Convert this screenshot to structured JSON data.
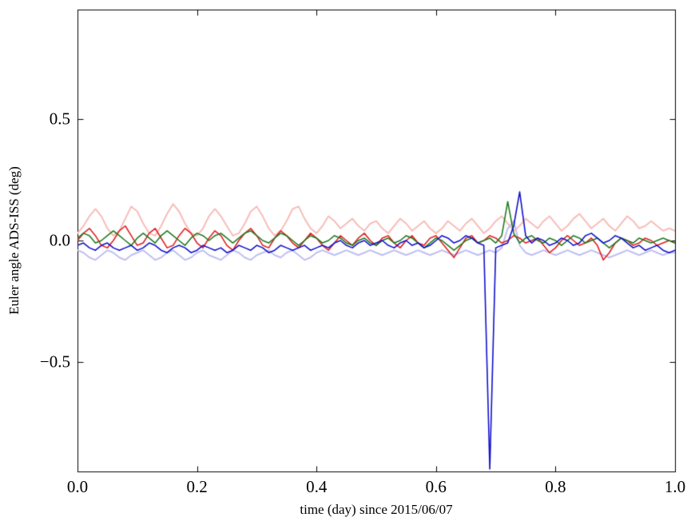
{
  "figure": {
    "background": "#ffffff"
  },
  "chart_data": {
    "type": "line",
    "title": "",
    "xlabel": "time (day) since 2015/06/07",
    "ylabel": "Euler angle ADS-ISS (deg)",
    "xlim": [
      0.0,
      1.0
    ],
    "ylim": [
      -0.95,
      0.95
    ],
    "xticks": [
      0.0,
      0.2,
      0.4,
      0.6,
      0.8,
      1.0
    ],
    "xtick_labels": [
      "0.0",
      "0.2",
      "0.4",
      "0.6",
      "0.8",
      "1.0"
    ],
    "yticks": [
      -0.5,
      0.0,
      0.5
    ],
    "ytick_labels": [
      "−0.5",
      "0.0",
      "0.5"
    ],
    "grid": false,
    "legend": null,
    "x": {
      "start": 0.0,
      "step": 0.01,
      "count": 101
    },
    "series": [
      {
        "name": "euler-angle-light-red",
        "color": "#f6bdb9",
        "width": 2.0,
        "values": [
          0.03,
          0.06,
          0.1,
          0.13,
          0.1,
          0.05,
          0.02,
          0.04,
          0.09,
          0.14,
          0.12,
          0.07,
          0.03,
          0.02,
          0.06,
          0.11,
          0.15,
          0.12,
          0.07,
          0.03,
          0.02,
          0.05,
          0.1,
          0.13,
          0.1,
          0.06,
          0.02,
          0.03,
          0.07,
          0.12,
          0.14,
          0.1,
          0.05,
          0.02,
          0.04,
          0.08,
          0.13,
          0.14,
          0.09,
          0.05,
          0.03,
          0.06,
          0.1,
          0.08,
          0.05,
          0.07,
          0.09,
          0.06,
          0.04,
          0.07,
          0.08,
          0.05,
          0.03,
          0.06,
          0.09,
          0.07,
          0.04,
          0.06,
          0.08,
          0.05,
          0.03,
          0.05,
          0.08,
          0.06,
          0.04,
          0.07,
          0.09,
          0.06,
          0.03,
          0.05,
          0.08,
          0.1,
          0.07,
          0.04,
          0.06,
          0.09,
          0.07,
          0.05,
          0.08,
          0.1,
          0.07,
          0.04,
          0.06,
          0.09,
          0.11,
          0.08,
          0.05,
          0.07,
          0.09,
          0.06,
          0.04,
          0.07,
          0.1,
          0.08,
          0.05,
          0.06,
          0.08,
          0.06,
          0.04,
          0.05,
          0.04
        ]
      },
      {
        "name": "euler-angle-light-blue",
        "color": "#bfbff2",
        "width": 2.0,
        "values": [
          -0.04,
          -0.05,
          -0.07,
          -0.08,
          -0.06,
          -0.04,
          -0.05,
          -0.07,
          -0.08,
          -0.06,
          -0.05,
          -0.04,
          -0.06,
          -0.08,
          -0.07,
          -0.05,
          -0.04,
          -0.06,
          -0.08,
          -0.07,
          -0.05,
          -0.04,
          -0.06,
          -0.07,
          -0.08,
          -0.06,
          -0.04,
          -0.05,
          -0.07,
          -0.08,
          -0.06,
          -0.05,
          -0.04,
          -0.06,
          -0.07,
          -0.05,
          -0.04,
          -0.06,
          -0.08,
          -0.07,
          -0.05,
          -0.04,
          -0.05,
          -0.06,
          -0.05,
          -0.04,
          -0.05,
          -0.06,
          -0.05,
          -0.04,
          -0.05,
          -0.06,
          -0.05,
          -0.04,
          -0.05,
          -0.06,
          -0.05,
          -0.04,
          -0.05,
          -0.06,
          -0.05,
          -0.04,
          -0.05,
          -0.06,
          -0.05,
          -0.04,
          -0.05,
          -0.06,
          -0.05,
          -0.04,
          -0.05,
          -0.03,
          0.05,
          0.08,
          -0.02,
          -0.05,
          -0.06,
          -0.05,
          -0.04,
          -0.05,
          -0.06,
          -0.05,
          -0.04,
          -0.05,
          -0.06,
          -0.05,
          -0.04,
          -0.05,
          -0.06,
          -0.07,
          -0.06,
          -0.05,
          -0.04,
          -0.05,
          -0.06,
          -0.05,
          -0.04,
          -0.05,
          -0.06,
          -0.05,
          -0.05
        ]
      },
      {
        "name": "euler-angle-red",
        "color": "#dd2222",
        "width": 1.6,
        "values": [
          0.0,
          0.03,
          0.05,
          0.02,
          -0.02,
          -0.03,
          0.0,
          0.04,
          0.06,
          0.02,
          -0.02,
          -0.01,
          0.03,
          0.05,
          0.01,
          -0.03,
          -0.02,
          0.02,
          0.05,
          0.03,
          -0.01,
          -0.03,
          0.01,
          0.04,
          0.02,
          -0.02,
          -0.04,
          0.0,
          0.03,
          0.05,
          0.02,
          -0.02,
          -0.03,
          0.01,
          0.04,
          0.02,
          -0.01,
          -0.03,
          0.0,
          0.03,
          0.01,
          -0.02,
          -0.04,
          -0.01,
          0.02,
          0.0,
          -0.02,
          0.01,
          0.03,
          0.0,
          -0.02,
          0.01,
          0.02,
          -0.01,
          -0.03,
          0.0,
          0.02,
          -0.01,
          -0.02,
          0.01,
          0.02,
          -0.01,
          -0.04,
          -0.07,
          -0.03,
          0.01,
          0.02,
          -0.01,
          0.0,
          0.02,
          0.01,
          -0.01,
          0.0,
          0.02,
          0.01,
          -0.01,
          0.0,
          0.01,
          -0.02,
          -0.05,
          -0.03,
          0.0,
          0.02,
          0.0,
          -0.02,
          -0.01,
          0.01,
          -0.02,
          -0.08,
          -0.05,
          -0.01,
          0.01,
          0.0,
          -0.02,
          -0.01,
          0.01,
          0.0,
          -0.02,
          -0.01,
          0.0,
          -0.01
        ]
      },
      {
        "name": "euler-angle-green",
        "color": "#1f7a1f",
        "width": 1.6,
        "values": [
          0.01,
          0.03,
          0.02,
          -0.01,
          0.0,
          0.02,
          0.04,
          0.02,
          0.0,
          -0.02,
          0.01,
          0.03,
          0.01,
          -0.01,
          0.02,
          0.04,
          0.02,
          0.0,
          -0.02,
          0.01,
          0.03,
          0.02,
          0.0,
          0.02,
          0.03,
          0.01,
          -0.01,
          0.01,
          0.03,
          0.04,
          0.02,
          0.0,
          -0.01,
          0.01,
          0.03,
          0.02,
          0.0,
          -0.02,
          0.0,
          0.02,
          0.01,
          -0.01,
          0.0,
          0.02,
          0.01,
          -0.01,
          -0.02,
          0.0,
          0.01,
          -0.01,
          -0.02,
          0.0,
          0.01,
          -0.01,
          0.0,
          0.02,
          0.01,
          -0.01,
          -0.03,
          -0.01,
          0.01,
          0.0,
          -0.02,
          -0.04,
          -0.02,
          0.0,
          0.01,
          -0.01,
          0.0,
          0.01,
          -0.01,
          0.02,
          0.16,
          0.03,
          -0.01,
          0.01,
          0.02,
          0.0,
          -0.01,
          0.01,
          0.0,
          -0.02,
          0.0,
          0.02,
          0.01,
          -0.01,
          0.0,
          0.01,
          -0.01,
          -0.03,
          -0.01,
          0.01,
          0.0,
          -0.01,
          0.01,
          0.0,
          -0.01,
          0.0,
          0.01,
          0.0,
          -0.01
        ]
      },
      {
        "name": "euler-angle-blue",
        "color": "#1111cc",
        "width": 1.6,
        "values": [
          -0.02,
          -0.01,
          -0.03,
          -0.04,
          -0.02,
          -0.01,
          -0.03,
          -0.04,
          -0.03,
          -0.02,
          -0.04,
          -0.03,
          -0.01,
          -0.02,
          -0.04,
          -0.05,
          -0.03,
          -0.02,
          -0.03,
          -0.05,
          -0.04,
          -0.02,
          -0.03,
          -0.04,
          -0.03,
          -0.05,
          -0.04,
          -0.02,
          -0.03,
          -0.04,
          -0.02,
          -0.03,
          -0.05,
          -0.04,
          -0.02,
          -0.03,
          -0.04,
          -0.03,
          -0.02,
          -0.04,
          -0.03,
          -0.02,
          -0.03,
          -0.01,
          0.0,
          -0.02,
          -0.03,
          -0.01,
          0.0,
          -0.02,
          -0.01,
          0.0,
          -0.02,
          -0.03,
          -0.01,
          0.0,
          -0.02,
          -0.01,
          -0.03,
          -0.02,
          0.0,
          0.02,
          0.01,
          -0.01,
          0.0,
          0.02,
          0.01,
          -0.01,
          -0.02,
          -0.94,
          -0.03,
          -0.02,
          -0.01,
          0.06,
          0.2,
          0.02,
          -0.01,
          0.01,
          0.0,
          -0.02,
          -0.01,
          0.01,
          0.0,
          -0.02,
          -0.01,
          0.02,
          0.03,
          0.01,
          -0.01,
          0.0,
          0.02,
          0.01,
          -0.01,
          -0.03,
          -0.02,
          -0.04,
          -0.03,
          -0.02,
          -0.04,
          -0.05,
          -0.04
        ]
      }
    ]
  }
}
